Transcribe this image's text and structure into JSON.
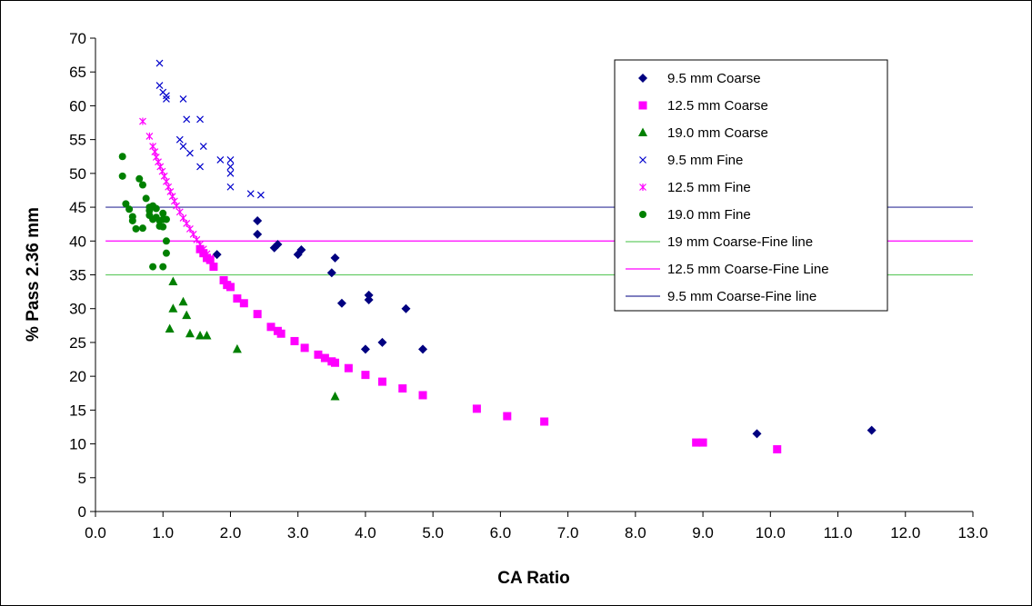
{
  "chart_data": {
    "type": "scatter",
    "xlabel": "CA Ratio",
    "ylabel": "% Pass 2.36 mm",
    "xlim": [
      0,
      13
    ],
    "ylim": [
      0,
      70
    ],
    "xticks": [
      "0.0",
      "1.0",
      "2.0",
      "3.0",
      "4.0",
      "5.0",
      "6.0",
      "7.0",
      "8.0",
      "9.0",
      "10.0",
      "11.0",
      "12.0",
      "13.0"
    ],
    "yticks": [
      "0",
      "5",
      "10",
      "15",
      "20",
      "25",
      "30",
      "35",
      "40",
      "45",
      "50",
      "55",
      "60",
      "65",
      "70"
    ],
    "grid": false,
    "legend_position": "top-right",
    "series": [
      {
        "name": "9.5 mm Coarse",
        "marker": "diamond",
        "color": "#000080",
        "points": [
          [
            1.8,
            38
          ],
          [
            2.4,
            43
          ],
          [
            2.4,
            41
          ],
          [
            2.65,
            39
          ],
          [
            2.7,
            39.5
          ],
          [
            3.0,
            38
          ],
          [
            3.05,
            38.7
          ],
          [
            3.5,
            35.3
          ],
          [
            3.55,
            37.5
          ],
          [
            3.65,
            30.8
          ],
          [
            4.0,
            24
          ],
          [
            4.05,
            32
          ],
          [
            4.05,
            31.3
          ],
          [
            4.25,
            25
          ],
          [
            4.6,
            30
          ],
          [
            4.85,
            24
          ],
          [
            9.8,
            11.5
          ],
          [
            11.5,
            12
          ]
        ]
      },
      {
        "name": "12.5 mm Coarse",
        "marker": "square",
        "color": "#FF00FF",
        "points": [
          [
            1.55,
            38.8
          ],
          [
            1.6,
            38.2
          ],
          [
            1.65,
            37.5
          ],
          [
            1.7,
            37.2
          ],
          [
            1.75,
            36.2
          ],
          [
            1.9,
            34.2
          ],
          [
            1.95,
            33.5
          ],
          [
            2.0,
            33.2
          ],
          [
            2.1,
            31.5
          ],
          [
            2.2,
            30.8
          ],
          [
            2.4,
            29.2
          ],
          [
            2.6,
            27.3
          ],
          [
            2.7,
            26.7
          ],
          [
            2.75,
            26.3
          ],
          [
            2.95,
            25.2
          ],
          [
            3.1,
            24.2
          ],
          [
            3.3,
            23.2
          ],
          [
            3.4,
            22.7
          ],
          [
            3.5,
            22.2
          ],
          [
            3.55,
            22
          ],
          [
            3.75,
            21.2
          ],
          [
            4.0,
            20.2
          ],
          [
            4.25,
            19.2
          ],
          [
            4.55,
            18.2
          ],
          [
            4.85,
            17.2
          ],
          [
            5.65,
            15.2
          ],
          [
            6.1,
            14.1
          ],
          [
            6.65,
            13.3
          ],
          [
            8.9,
            10.2
          ],
          [
            9.0,
            10.2
          ],
          [
            10.1,
            9.2
          ]
        ]
      },
      {
        "name": "19.0 mm Coarse",
        "marker": "triangle",
        "color": "#008000",
        "points": [
          [
            1.1,
            27
          ],
          [
            1.15,
            34
          ],
          [
            1.15,
            30
          ],
          [
            1.3,
            31
          ],
          [
            1.35,
            29
          ],
          [
            1.4,
            26.3
          ],
          [
            1.55,
            26
          ],
          [
            1.65,
            26
          ],
          [
            2.1,
            24
          ],
          [
            3.55,
            17
          ]
        ]
      },
      {
        "name": "9.5 mm Fine",
        "marker": "x",
        "color": "#0000CC",
        "points": [
          [
            0.95,
            66.3
          ],
          [
            0.95,
            63
          ],
          [
            1.0,
            62
          ],
          [
            1.05,
            61
          ],
          [
            1.05,
            61.5
          ],
          [
            1.25,
            55
          ],
          [
            1.3,
            61
          ],
          [
            1.3,
            54
          ],
          [
            1.35,
            58
          ],
          [
            1.4,
            53
          ],
          [
            1.55,
            51
          ],
          [
            1.55,
            58
          ],
          [
            1.6,
            54
          ],
          [
            1.85,
            52
          ],
          [
            2.0,
            52
          ],
          [
            2.0,
            50
          ],
          [
            2.0,
            48
          ],
          [
            2.3,
            47
          ],
          [
            2.45,
            46.8
          ],
          [
            2.0,
            51
          ]
        ]
      },
      {
        "name": "12.5 mm Fine",
        "marker": "asterisk",
        "color": "#FF00FF",
        "points": [
          [
            0.7,
            57.7
          ],
          [
            0.8,
            55.5
          ],
          [
            0.85,
            54
          ],
          [
            0.88,
            53.2
          ],
          [
            0.9,
            52.4
          ],
          [
            0.93,
            51.7
          ],
          [
            0.96,
            51
          ],
          [
            0.99,
            50.3
          ],
          [
            1.02,
            49.6
          ],
          [
            1.05,
            48.8
          ],
          [
            1.08,
            48
          ],
          [
            1.11,
            47.3
          ],
          [
            1.14,
            46.6
          ],
          [
            1.17,
            45.9
          ],
          [
            1.2,
            45.2
          ],
          [
            1.25,
            44.3
          ],
          [
            1.3,
            43.4
          ],
          [
            1.35,
            42.6
          ],
          [
            1.4,
            41.8
          ],
          [
            1.45,
            41
          ],
          [
            1.5,
            40.2
          ],
          [
            1.55,
            39.5
          ],
          [
            1.6,
            38.8
          ],
          [
            1.65,
            38.1
          ],
          [
            1.7,
            37.5
          ]
        ]
      },
      {
        "name": "19.0 mm Fine",
        "marker": "circle",
        "color": "#008000",
        "points": [
          [
            0.4,
            52.5
          ],
          [
            0.4,
            49.6
          ],
          [
            0.45,
            45.5
          ],
          [
            0.5,
            44.7
          ],
          [
            0.55,
            43.6
          ],
          [
            0.55,
            43
          ],
          [
            0.6,
            41.8
          ],
          [
            0.65,
            49.2
          ],
          [
            0.7,
            48.3
          ],
          [
            0.7,
            41.9
          ],
          [
            0.75,
            46.3
          ],
          [
            0.8,
            45
          ],
          [
            0.8,
            44.5
          ],
          [
            0.8,
            43.8
          ],
          [
            0.85,
            45.2
          ],
          [
            0.85,
            43.2
          ],
          [
            0.85,
            36.2
          ],
          [
            0.9,
            44.8
          ],
          [
            0.9,
            43.5
          ],
          [
            0.95,
            43
          ],
          [
            0.95,
            42.2
          ],
          [
            1.0,
            44.1
          ],
          [
            1.0,
            43.2
          ],
          [
            1.0,
            36.2
          ],
          [
            1.0,
            42.1
          ],
          [
            1.05,
            40
          ],
          [
            1.05,
            38.2
          ],
          [
            1.05,
            43.2
          ]
        ]
      },
      {
        "name": "19 mm Coarse-Fine line",
        "marker": "line",
        "color": "#66CC66",
        "y": 35
      },
      {
        "name": "12.5 mm Coarse-Fine Line",
        "marker": "line",
        "color": "#FF00FF",
        "y": 40
      },
      {
        "name": "9.5 mm Coarse-Fine line",
        "marker": "line",
        "color": "#333399",
        "y": 45
      }
    ]
  }
}
